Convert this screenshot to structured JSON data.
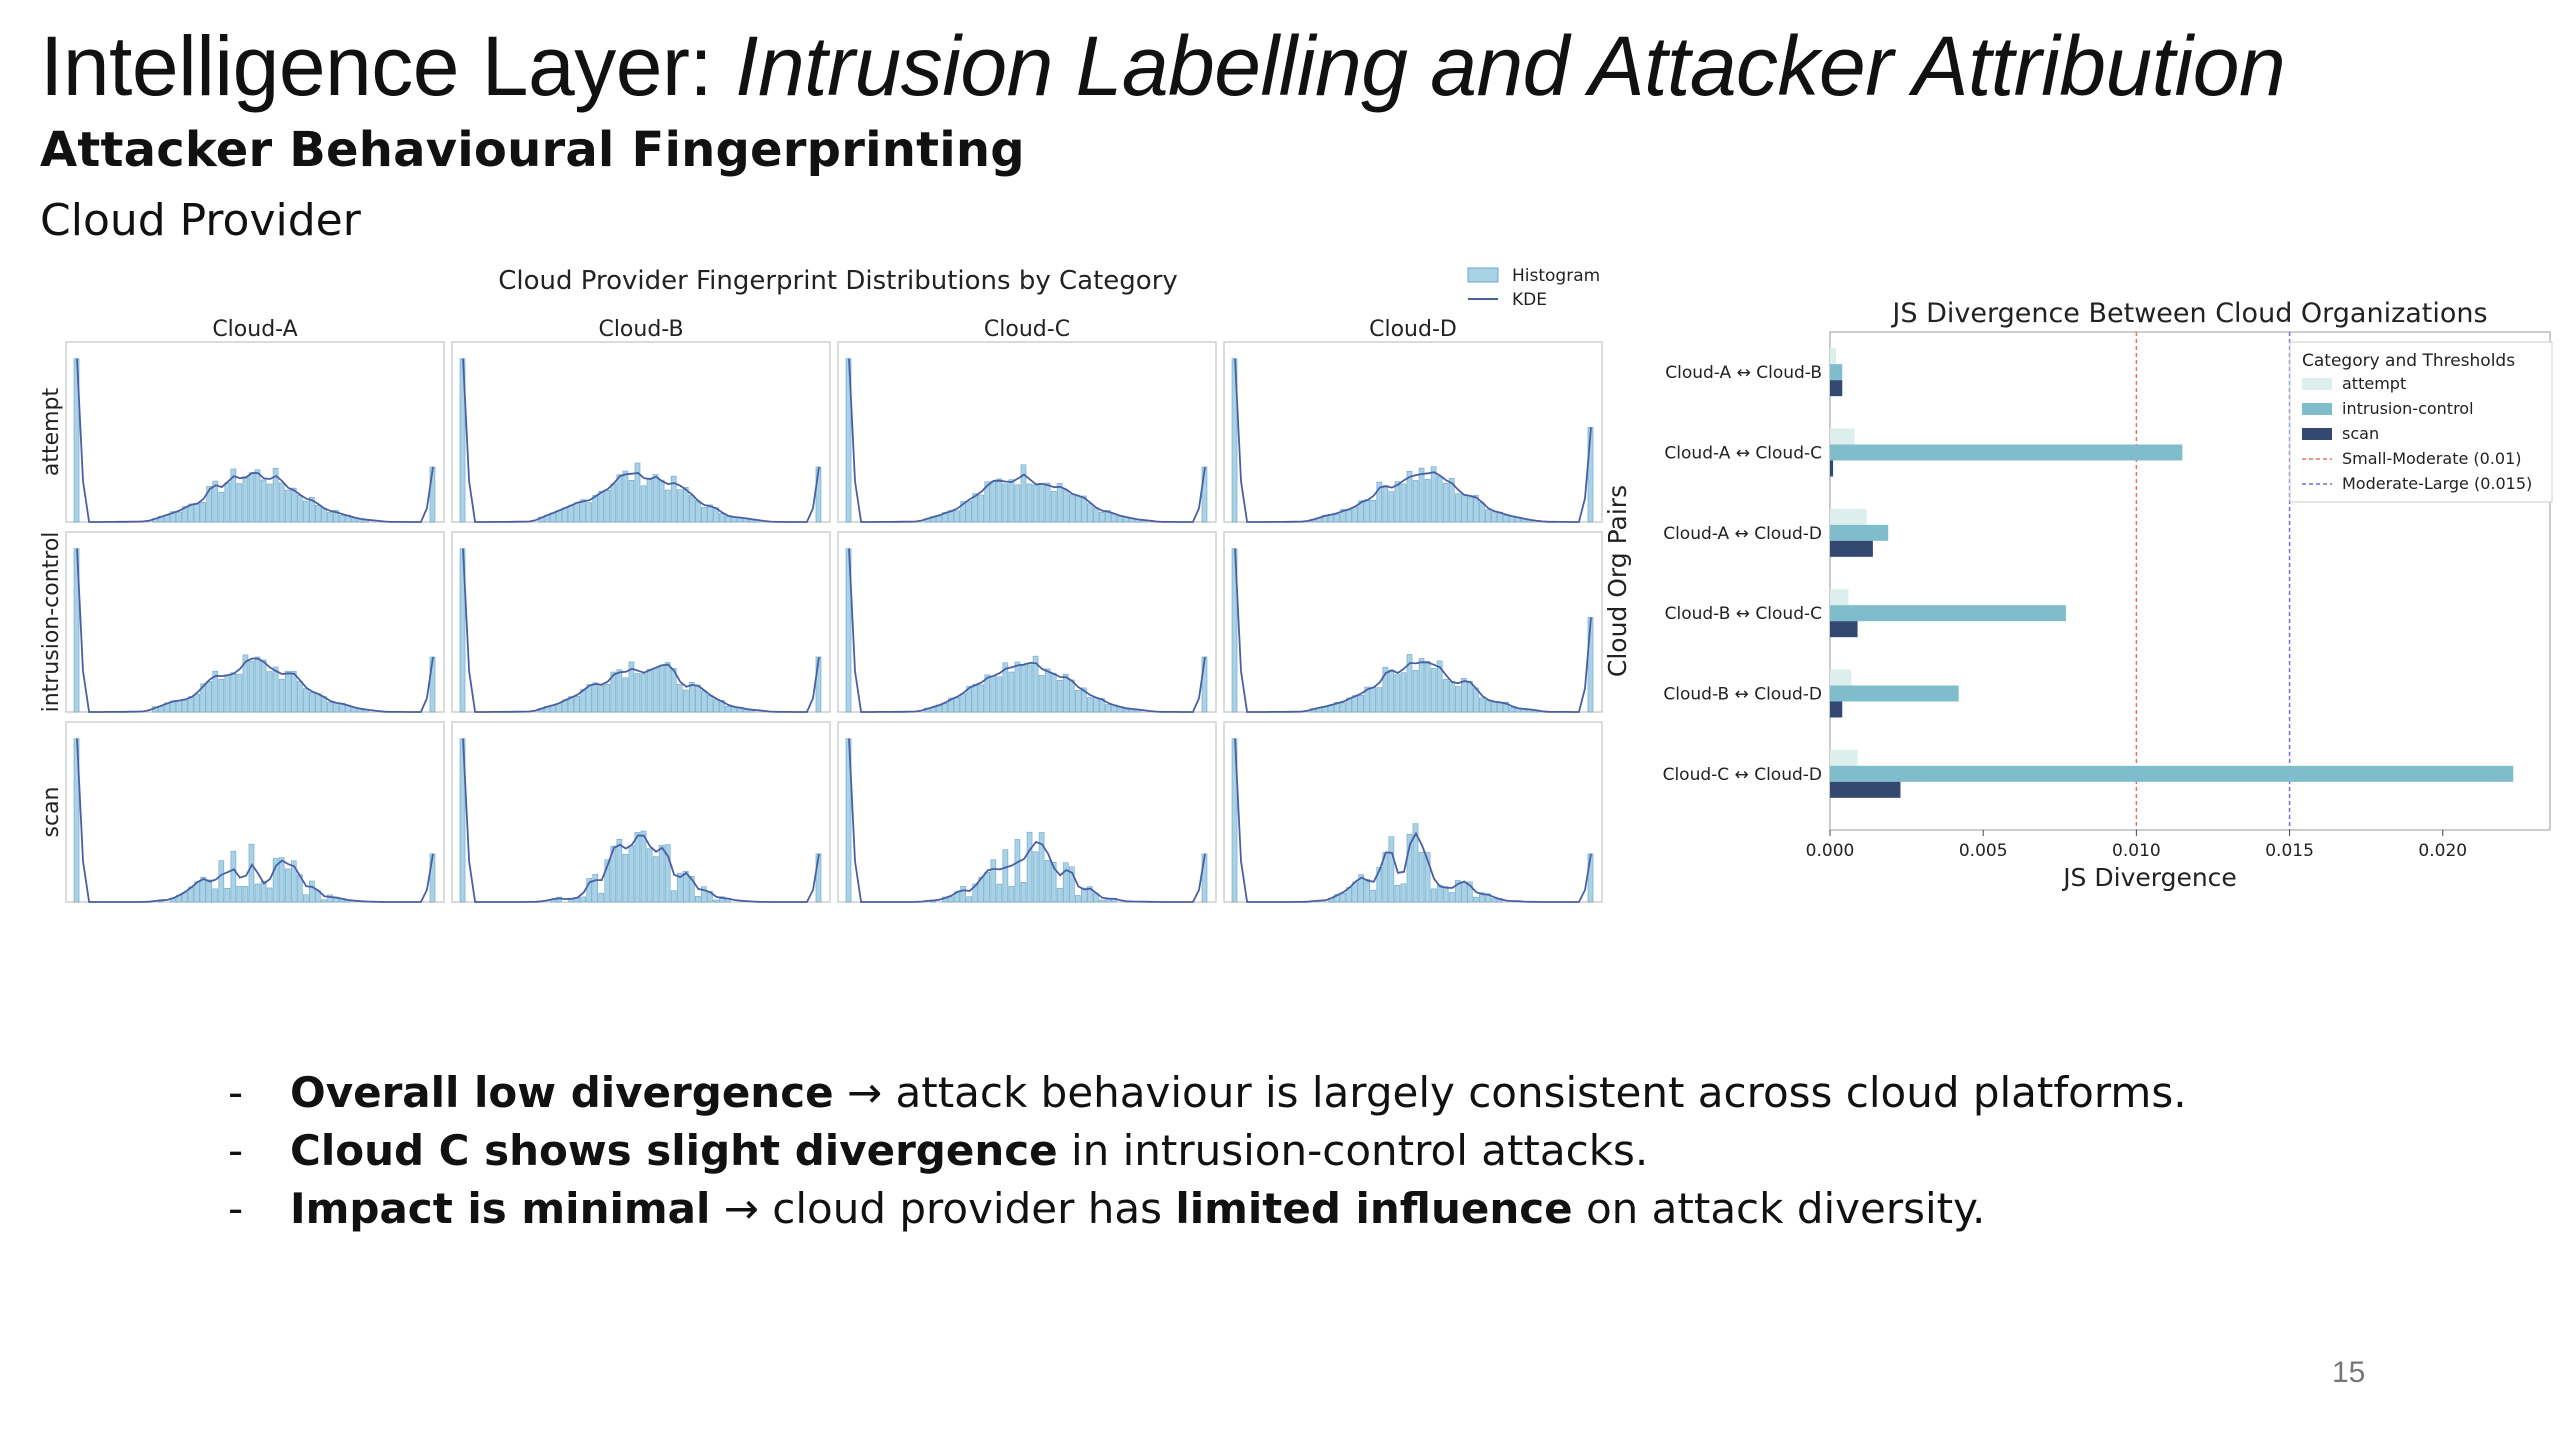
{
  "slide": {
    "title_main": "Intelligence Layer: ",
    "title_italic": "Intrusion Labelling and Attacker Attribution",
    "subtitle": "Attacker Behavioural Fingerprinting",
    "section": "Cloud Provider",
    "page_number": "15"
  },
  "bullets": [
    {
      "dash": "-",
      "bold": "Overall low divergence",
      "sep": " → ",
      "rest": "attack behaviour is largely consistent across cloud platforms.",
      "bold2": "",
      "tail": ""
    },
    {
      "dash": "-",
      "bold": "Cloud C shows slight divergence",
      "sep": " ",
      "rest": "in intrusion-control attacks.",
      "bold2": "",
      "tail": ""
    },
    {
      "dash": "-",
      "bold": "Impact is minimal",
      "sep": " → ",
      "rest": "cloud provider has ",
      "bold2": "limited influence",
      "tail": " on attack diversity."
    }
  ],
  "chart_data": [
    {
      "type": "histogram-grid",
      "title": "Cloud Provider Fingerprint Distributions by Category",
      "columns": [
        "Cloud-A",
        "Cloud-B",
        "Cloud-C",
        "Cloud-D"
      ],
      "rows": [
        "attempt",
        "intrusion-control",
        "scan"
      ],
      "legend": [
        "Histogram",
        "KDE"
      ],
      "legend_position": "top-right",
      "colors": {
        "bar": "#a9d2e6",
        "bar_edge": "#6aa6c8",
        "kde": "#4a5fa3"
      },
      "profile": {
        "description_shape": "spike-left, broad-hump-center, spike-right",
        "bins": 60
      }
    },
    {
      "type": "bar",
      "orientation": "horizontal",
      "title": "JS Divergence Between Cloud Organizations",
      "xlabel": "JS Divergence",
      "ylabel": "Cloud Org Pairs",
      "categories": [
        "Cloud-A ↔ Cloud-B",
        "Cloud-A ↔ Cloud-C",
        "Cloud-A ↔ Cloud-D",
        "Cloud-B ↔ Cloud-C",
        "Cloud-B ↔ Cloud-D",
        "Cloud-C ↔ Cloud-D"
      ],
      "series": [
        {
          "name": "attempt",
          "color": "#dcefed",
          "values": [
            0.0002,
            0.0008,
            0.0012,
            0.0006,
            0.0007,
            0.0009
          ]
        },
        {
          "name": "intrusion-control",
          "color": "#7fbdcc",
          "values": [
            0.0004,
            0.0115,
            0.0019,
            0.0077,
            0.0042,
            0.0223
          ]
        },
        {
          "name": "scan",
          "color": "#34496f",
          "values": [
            0.0004,
            0.0001,
            0.0014,
            0.0009,
            0.0004,
            0.0023
          ]
        }
      ],
      "thresholds": [
        {
          "name": "Small-Moderate (0.01)",
          "value": 0.01,
          "color": "#e07070"
        },
        {
          "name": "Moderate-Large (0.015)",
          "value": 0.015,
          "color": "#6f6fe0"
        }
      ],
      "legend_title": "Category and Thresholds",
      "legend_position": "top-right",
      "xlim": [
        0,
        0.0235
      ],
      "xticks": [
        "0.000",
        "0.005",
        "0.010",
        "0.015",
        "0.020"
      ],
      "xtick_values": [
        0,
        0.005,
        0.01,
        0.015,
        0.02
      ]
    }
  ]
}
